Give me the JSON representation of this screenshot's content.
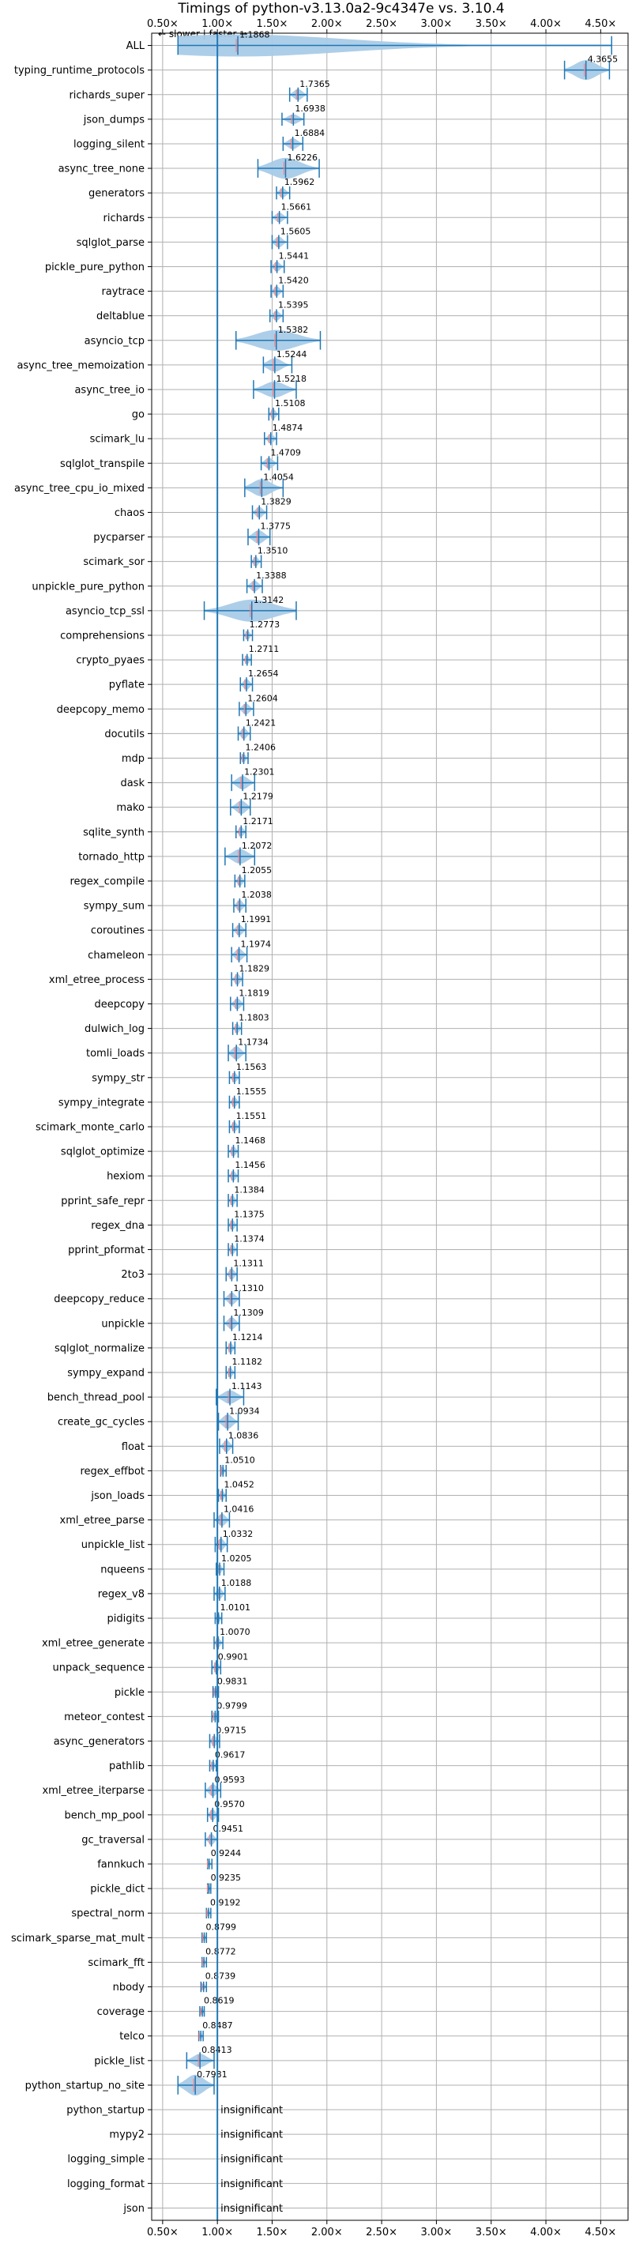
{
  "chart_data": {
    "type": "violin",
    "title": "Timings of python-v3.13.0a2-9c4347e vs. 3.10.4",
    "direction_note": "← slower | faster →",
    "xlim": [
      0.4,
      4.75
    ],
    "xticks": [
      0.5,
      1.0,
      1.5,
      2.0,
      2.5,
      3.0,
      3.5,
      4.0,
      4.5
    ],
    "xtick_labels": [
      "0.50×",
      "1.00×",
      "1.50×",
      "2.00×",
      "2.50×",
      "3.00×",
      "3.50×",
      "4.00×",
      "4.50×"
    ],
    "reference_line": 1.0,
    "grid": true,
    "colors": {
      "violin": "#a9cbe7",
      "line": "#1f77b4",
      "median": "#ff7f7f"
    },
    "insignificant_label": "insignificant",
    "benchmarks": [
      {
        "name": "ALL",
        "value": 1.1868,
        "lo": 0.64,
        "hi": 4.6,
        "w": 0.9
      },
      {
        "name": "typing_runtime_protocols",
        "value": 4.3655,
        "lo": 4.17,
        "hi": 4.58,
        "w": 0.8
      },
      {
        "name": "richards_super",
        "value": 1.7365,
        "lo": 1.66,
        "hi": 1.82,
        "w": 0.45
      },
      {
        "name": "json_dumps",
        "value": 1.6938,
        "lo": 1.59,
        "hi": 1.79,
        "w": 0.4
      },
      {
        "name": "logging_silent",
        "value": 1.6884,
        "lo": 1.6,
        "hi": 1.78,
        "w": 0.45
      },
      {
        "name": "async_tree_none",
        "value": 1.6226,
        "lo": 1.37,
        "hi": 1.93,
        "w": 0.85
      },
      {
        "name": "generators",
        "value": 1.5962,
        "lo": 1.54,
        "hi": 1.66,
        "w": 0.4
      },
      {
        "name": "richards",
        "value": 1.5661,
        "lo": 1.5,
        "hi": 1.64,
        "w": 0.4
      },
      {
        "name": "sqlglot_parse",
        "value": 1.5605,
        "lo": 1.5,
        "hi": 1.64,
        "w": 0.45
      },
      {
        "name": "pickle_pure_python",
        "value": 1.5441,
        "lo": 1.49,
        "hi": 1.61,
        "w": 0.4
      },
      {
        "name": "raytrace",
        "value": 1.542,
        "lo": 1.49,
        "hi": 1.6,
        "w": 0.4
      },
      {
        "name": "deltablue",
        "value": 1.5395,
        "lo": 1.48,
        "hi": 1.6,
        "w": 0.4
      },
      {
        "name": "asyncio_tcp",
        "value": 1.5382,
        "lo": 1.17,
        "hi": 1.94,
        "w": 0.85
      },
      {
        "name": "async_tree_memoization",
        "value": 1.5244,
        "lo": 1.42,
        "hi": 1.68,
        "w": 0.55
      },
      {
        "name": "async_tree_io",
        "value": 1.5218,
        "lo": 1.33,
        "hi": 1.72,
        "w": 0.65
      },
      {
        "name": "go",
        "value": 1.5108,
        "lo": 1.47,
        "hi": 1.56,
        "w": 0.4
      },
      {
        "name": "scimark_lu",
        "value": 1.4874,
        "lo": 1.43,
        "hi": 1.54,
        "w": 0.4
      },
      {
        "name": "sqlglot_transpile",
        "value": 1.4709,
        "lo": 1.4,
        "hi": 1.55,
        "w": 0.45
      },
      {
        "name": "async_tree_cpu_io_mixed",
        "value": 1.4054,
        "lo": 1.25,
        "hi": 1.6,
        "w": 0.7
      },
      {
        "name": "chaos",
        "value": 1.3829,
        "lo": 1.32,
        "hi": 1.45,
        "w": 0.45
      },
      {
        "name": "pycparser",
        "value": 1.3775,
        "lo": 1.28,
        "hi": 1.48,
        "w": 0.55
      },
      {
        "name": "scimark_sor",
        "value": 1.351,
        "lo": 1.31,
        "hi": 1.4,
        "w": 0.4
      },
      {
        "name": "unpickle_pure_python",
        "value": 1.3388,
        "lo": 1.27,
        "hi": 1.41,
        "w": 0.45
      },
      {
        "name": "asyncio_tcp_ssl",
        "value": 1.3142,
        "lo": 0.88,
        "hi": 1.72,
        "w": 0.9
      },
      {
        "name": "comprehensions",
        "value": 1.2773,
        "lo": 1.24,
        "hi": 1.32,
        "w": 0.35
      },
      {
        "name": "crypto_pyaes",
        "value": 1.2711,
        "lo": 1.23,
        "hi": 1.31,
        "w": 0.35
      },
      {
        "name": "pyflate",
        "value": 1.2654,
        "lo": 1.21,
        "hi": 1.32,
        "w": 0.45
      },
      {
        "name": "deepcopy_memo",
        "value": 1.2604,
        "lo": 1.2,
        "hi": 1.33,
        "w": 0.45
      },
      {
        "name": "docutils",
        "value": 1.2421,
        "lo": 1.19,
        "hi": 1.3,
        "w": 0.45
      },
      {
        "name": "mdp",
        "value": 1.2406,
        "lo": 1.21,
        "hi": 1.28,
        "w": 0.35
      },
      {
        "name": "dask",
        "value": 1.2301,
        "lo": 1.13,
        "hi": 1.34,
        "w": 0.55
      },
      {
        "name": "mako",
        "value": 1.2179,
        "lo": 1.12,
        "hi": 1.3,
        "w": 0.55
      },
      {
        "name": "sqlite_synth",
        "value": 1.2171,
        "lo": 1.17,
        "hi": 1.26,
        "w": 0.4
      },
      {
        "name": "tornado_http",
        "value": 1.2072,
        "lo": 1.07,
        "hi": 1.34,
        "w": 0.6
      },
      {
        "name": "regex_compile",
        "value": 1.2055,
        "lo": 1.16,
        "hi": 1.25,
        "w": 0.4
      },
      {
        "name": "sympy_sum",
        "value": 1.2038,
        "lo": 1.15,
        "hi": 1.26,
        "w": 0.45
      },
      {
        "name": "coroutines",
        "value": 1.1991,
        "lo": 1.14,
        "hi": 1.26,
        "w": 0.45
      },
      {
        "name": "chameleon",
        "value": 1.1974,
        "lo": 1.13,
        "hi": 1.27,
        "w": 0.5
      },
      {
        "name": "xml_etree_process",
        "value": 1.1829,
        "lo": 1.13,
        "hi": 1.23,
        "w": 0.45
      },
      {
        "name": "deepcopy",
        "value": 1.1819,
        "lo": 1.12,
        "hi": 1.24,
        "w": 0.45
      },
      {
        "name": "dulwich_log",
        "value": 1.1803,
        "lo": 1.14,
        "hi": 1.22,
        "w": 0.4
      },
      {
        "name": "tomli_loads",
        "value": 1.1734,
        "lo": 1.1,
        "hi": 1.26,
        "w": 0.55
      },
      {
        "name": "sympy_str",
        "value": 1.1563,
        "lo": 1.11,
        "hi": 1.2,
        "w": 0.4
      },
      {
        "name": "sympy_integrate",
        "value": 1.1555,
        "lo": 1.11,
        "hi": 1.2,
        "w": 0.4
      },
      {
        "name": "scimark_monte_carlo",
        "value": 1.1551,
        "lo": 1.11,
        "hi": 1.2,
        "w": 0.4
      },
      {
        "name": "sqlglot_optimize",
        "value": 1.1468,
        "lo": 1.1,
        "hi": 1.19,
        "w": 0.4
      },
      {
        "name": "hexiom",
        "value": 1.1456,
        "lo": 1.1,
        "hi": 1.19,
        "w": 0.4
      },
      {
        "name": "pprint_safe_repr",
        "value": 1.1384,
        "lo": 1.1,
        "hi": 1.18,
        "w": 0.4
      },
      {
        "name": "regex_dna",
        "value": 1.1375,
        "lo": 1.1,
        "hi": 1.18,
        "w": 0.4
      },
      {
        "name": "pprint_pformat",
        "value": 1.1374,
        "lo": 1.1,
        "hi": 1.18,
        "w": 0.4
      },
      {
        "name": "2to3",
        "value": 1.1311,
        "lo": 1.08,
        "hi": 1.18,
        "w": 0.45
      },
      {
        "name": "deepcopy_reduce",
        "value": 1.131,
        "lo": 1.06,
        "hi": 1.2,
        "w": 0.5
      },
      {
        "name": "unpickle",
        "value": 1.1309,
        "lo": 1.06,
        "hi": 1.2,
        "w": 0.5
      },
      {
        "name": "sqlglot_normalize",
        "value": 1.1214,
        "lo": 1.08,
        "hi": 1.16,
        "w": 0.4
      },
      {
        "name": "sympy_expand",
        "value": 1.1182,
        "lo": 1.08,
        "hi": 1.16,
        "w": 0.4
      },
      {
        "name": "bench_thread_pool",
        "value": 1.1143,
        "lo": 0.99,
        "hi": 1.24,
        "w": 0.55
      },
      {
        "name": "create_gc_cycles",
        "value": 1.0934,
        "lo": 1.01,
        "hi": 1.19,
        "w": 0.6
      },
      {
        "name": "float",
        "value": 1.0836,
        "lo": 1.02,
        "hi": 1.14,
        "w": 0.5
      },
      {
        "name": "regex_effbot",
        "value": 1.051,
        "lo": 1.03,
        "hi": 1.08,
        "w": 0.35
      },
      {
        "name": "json_loads",
        "value": 1.0452,
        "lo": 1.01,
        "hi": 1.08,
        "w": 0.4
      },
      {
        "name": "xml_etree_parse",
        "value": 1.0416,
        "lo": 0.97,
        "hi": 1.11,
        "w": 0.5
      },
      {
        "name": "unpickle_list",
        "value": 1.0332,
        "lo": 0.98,
        "hi": 1.09,
        "w": 0.5
      },
      {
        "name": "nqueens",
        "value": 1.0205,
        "lo": 0.99,
        "hi": 1.06,
        "w": 0.4
      },
      {
        "name": "regex_v8",
        "value": 1.0188,
        "lo": 0.97,
        "hi": 1.07,
        "w": 0.45
      },
      {
        "name": "pidigits",
        "value": 1.0101,
        "lo": 0.98,
        "hi": 1.04,
        "w": 0.35
      },
      {
        "name": "xml_etree_generate",
        "value": 1.007,
        "lo": 0.97,
        "hi": 1.05,
        "w": 0.4
      },
      {
        "name": "unpack_sequence",
        "value": 0.9901,
        "lo": 0.95,
        "hi": 1.03,
        "w": 0.45
      },
      {
        "name": "pickle",
        "value": 0.9831,
        "lo": 0.96,
        "hi": 1.01,
        "w": 0.35
      },
      {
        "name": "meteor_contest",
        "value": 0.9799,
        "lo": 0.95,
        "hi": 1.01,
        "w": 0.35
      },
      {
        "name": "async_generators",
        "value": 0.9715,
        "lo": 0.93,
        "hi": 1.02,
        "w": 0.45
      },
      {
        "name": "pathlib",
        "value": 0.9617,
        "lo": 0.93,
        "hi": 0.99,
        "w": 0.35
      },
      {
        "name": "xml_etree_iterparse",
        "value": 0.9593,
        "lo": 0.89,
        "hi": 1.03,
        "w": 0.5
      },
      {
        "name": "bench_mp_pool",
        "value": 0.957,
        "lo": 0.91,
        "hi": 1.01,
        "w": 0.45
      },
      {
        "name": "gc_traversal",
        "value": 0.9451,
        "lo": 0.89,
        "hi": 1.0,
        "w": 0.45
      },
      {
        "name": "fannkuch",
        "value": 0.9244,
        "lo": 0.91,
        "hi": 0.95,
        "w": 0.3
      },
      {
        "name": "pickle_dict",
        "value": 0.9235,
        "lo": 0.91,
        "hi": 0.94,
        "w": 0.3
      },
      {
        "name": "spectral_norm",
        "value": 0.9192,
        "lo": 0.9,
        "hi": 0.94,
        "w": 0.3
      },
      {
        "name": "scimark_sparse_mat_mult",
        "value": 0.8799,
        "lo": 0.86,
        "hi": 0.9,
        "w": 0.3
      },
      {
        "name": "scimark_fft",
        "value": 0.8772,
        "lo": 0.86,
        "hi": 0.9,
        "w": 0.3
      },
      {
        "name": "nbody",
        "value": 0.8739,
        "lo": 0.85,
        "hi": 0.9,
        "w": 0.3
      },
      {
        "name": "coverage",
        "value": 0.8619,
        "lo": 0.84,
        "hi": 0.88,
        "w": 0.3
      },
      {
        "name": "telco",
        "value": 0.8487,
        "lo": 0.83,
        "hi": 0.87,
        "w": 0.3
      },
      {
        "name": "pickle_list",
        "value": 0.8413,
        "lo": 0.72,
        "hi": 0.97,
        "w": 0.55
      },
      {
        "name": "python_startup_no_site",
        "value": 0.7981,
        "lo": 0.64,
        "hi": 0.97,
        "w": 0.85
      },
      {
        "name": "python_startup",
        "value": null
      },
      {
        "name": "mypy2",
        "value": null
      },
      {
        "name": "logging_simple",
        "value": null
      },
      {
        "name": "logging_format",
        "value": null
      },
      {
        "name": "json",
        "value": null
      }
    ]
  }
}
